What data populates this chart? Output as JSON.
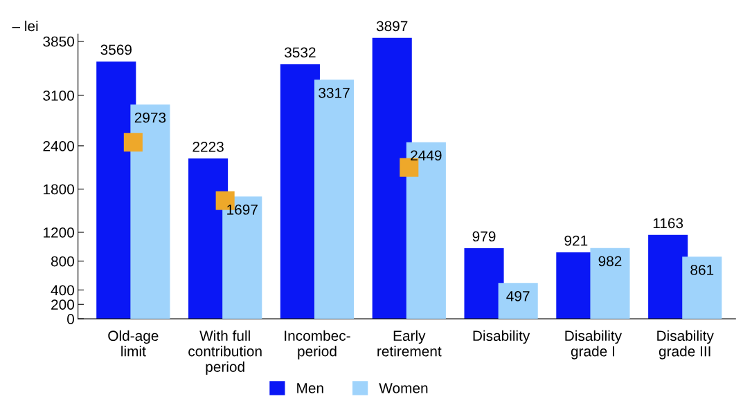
{
  "chart_data": {
    "type": "bar",
    "ylabel": "– lei",
    "categories": [
      "Old-age\nlimit",
      "With full\ncontribution\nperiod",
      "Incombec-\nperiod",
      "Early\nretirement",
      "Disability",
      "Disability\ngrade I",
      "Disability\ngrade III"
    ],
    "series": [
      {
        "name": "Men",
        "color": "#0a17f5",
        "values": [
          3569,
          2223,
          3532,
          3897,
          979,
          921,
          1163
        ],
        "value_labels": [
          "3569",
          "2223",
          "3532",
          "3897",
          "979",
          "921",
          "1163"
        ]
      },
      {
        "name": "Women",
        "color": "#9fd3fb",
        "values": [
          2973,
          1697,
          3317,
          2449,
          497,
          982,
          861
        ],
        "value_labels": [
          "2973",
          "1697",
          "3317",
          "2449",
          "497",
          "982",
          "861"
        ]
      },
      {
        "type": "scatter",
        "color": "#eea82a",
        "marker": "square",
        "values": [
          2450,
          1640,
          null,
          2100,
          null,
          null,
          null
        ]
      }
    ],
    "ylim": [
      0,
      3950
    ],
    "yticks": [
      0,
      200,
      400,
      800,
      1200,
      1800,
      2400,
      3100,
      3850
    ],
    "grid": false,
    "legend": "bottom"
  }
}
